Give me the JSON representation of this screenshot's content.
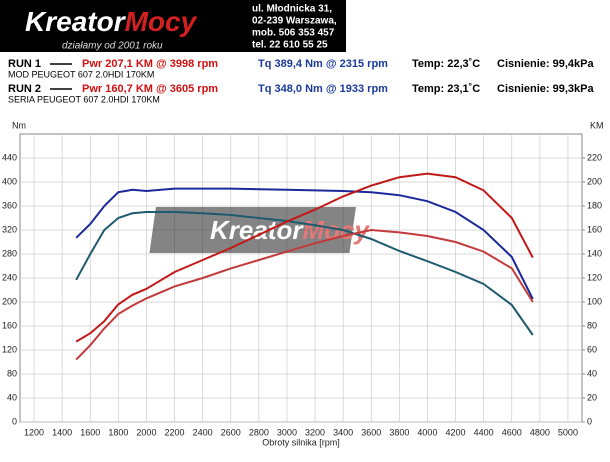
{
  "header": {
    "logo_a": "Kreator",
    "logo_b": "Mocy",
    "tagline": "działamy od 2001 roku",
    "address": [
      "ul. Młodnicka 31,",
      "02-239  Warszawa,",
      "mob.  506 353 457",
      "tel.  22 610 55 25"
    ]
  },
  "runs": [
    {
      "run": "RUN 1",
      "pwr": "Pwr  207,1 KM @ 3998 rpm",
      "tq": "Tq 389,4 Nm @ 2315 rpm",
      "temp": "Temp: 22,3˚C",
      "pressure": "Cisnienie: 99,4kPa",
      "car": "MOD PEUGEOT 607 2.0HDI 170KM"
    },
    {
      "run": "RUN 2",
      "pwr": "Pwr  160,7 KM @ 3605 rpm",
      "tq": "Tq 348,0 Nm @ 1933 rpm",
      "temp": "Temp: 23,1˚C",
      "pressure": "Cisnienie: 99,3kPa",
      "car": "SERIA PEUGEOT 607 2.0HDI 170KM"
    }
  ],
  "chart_data": {
    "type": "line",
    "y_label": "Nm",
    "y2_label": "KM",
    "x_label": "Obroty silnika [rpm]",
    "x": [
      1500,
      1600,
      1700,
      1800,
      1900,
      2000,
      2200,
      2400,
      2600,
      2800,
      3000,
      3200,
      3400,
      3600,
      3800,
      4000,
      4200,
      4400,
      4600,
      4750
    ],
    "series": [
      {
        "color": "#1a2a9a",
        "axis": "y",
        "values": [
          307,
          330,
          360,
          383,
          387,
          385,
          389,
          389,
          389,
          388,
          387,
          386,
          385,
          383,
          378,
          368,
          350,
          320,
          275,
          205
        ]
      },
      {
        "color": "#1f5a6e",
        "axis": "y",
        "values": [
          237,
          280,
          320,
          340,
          348,
          350,
          350,
          348,
          345,
          340,
          335,
          328,
          320,
          305,
          285,
          268,
          250,
          230,
          195,
          145
        ]
      },
      {
        "color": "#c21818",
        "axis": "y2",
        "values": [
          67,
          74,
          84,
          98,
          106,
          111,
          125,
          135,
          145,
          156,
          167,
          177,
          188,
          197,
          204,
          207,
          204,
          193,
          170,
          137
        ]
      },
      {
        "color": "#c23a3a",
        "axis": "y2",
        "values": [
          52,
          64,
          78,
          90,
          97,
          103,
          113,
          120,
          128,
          135,
          142,
          149,
          155,
          160,
          158,
          155,
          150,
          142,
          128,
          100
        ]
      }
    ],
    "xlim": [
      1100,
      5100
    ],
    "xticks": [
      1200,
      1400,
      1600,
      1800,
      2000,
      2200,
      2400,
      2600,
      2800,
      3000,
      3200,
      3400,
      3600,
      3800,
      4000,
      4200,
      4400,
      4600,
      4800,
      5000
    ],
    "ylim": [
      0,
      480
    ],
    "yticks": [
      0,
      40,
      80,
      120,
      160,
      200,
      240,
      280,
      320,
      360,
      400,
      440
    ],
    "y2lim": [
      0,
      240
    ],
    "y2ticks": [
      0,
      20,
      40,
      60,
      80,
      100,
      120,
      140,
      160,
      180,
      200,
      220
    ],
    "grid": true
  }
}
